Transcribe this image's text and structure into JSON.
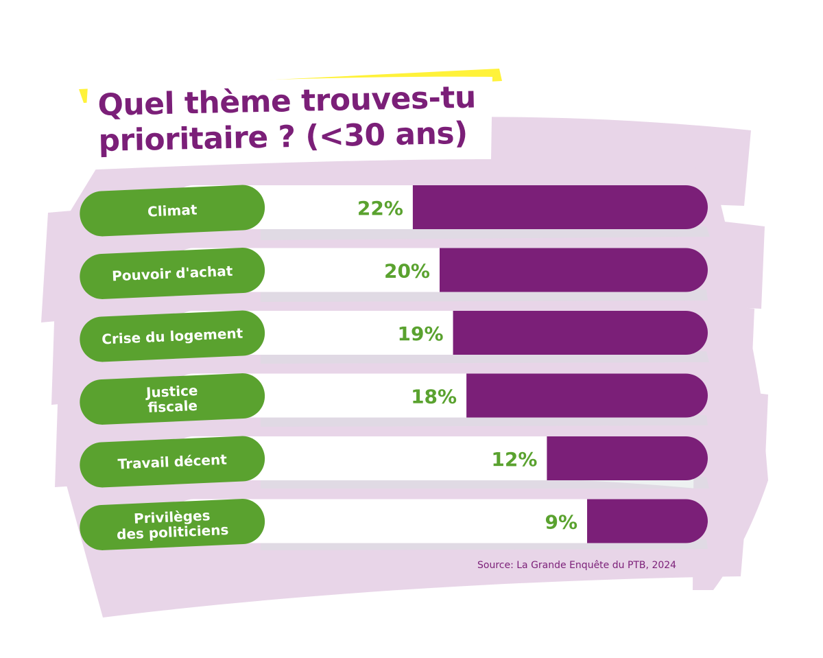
{
  "colors": {
    "title": "#7b1f78",
    "bar_fill": "#7b1f78",
    "label_pill": "#5aa22f",
    "value_text": "#5aa22f",
    "track": "#ffffff",
    "brush_stroke": "#e7d3e7",
    "highlight": "#fff23a"
  },
  "chart_data": {
    "type": "bar",
    "orientation": "horizontal",
    "title_lines": [
      "Quel thème trouves-tu",
      "prioritaire ? (<30 ans)"
    ],
    "categories": [
      [
        "Climat"
      ],
      [
        "Pouvoir d'achat"
      ],
      [
        "Crise du logement"
      ],
      [
        "Justice",
        "fiscale"
      ],
      [
        "Travail décent"
      ],
      [
        "Privilèges",
        "des politiciens"
      ]
    ],
    "values": [
      22,
      20,
      19,
      18,
      12,
      9
    ],
    "value_labels": [
      "22%",
      "20%",
      "19%",
      "18%",
      "12%",
      "9%"
    ],
    "unit": "%",
    "xlim": [
      0,
      40
    ],
    "source": "Source: La Grande Enquête du PTB, 2024"
  }
}
